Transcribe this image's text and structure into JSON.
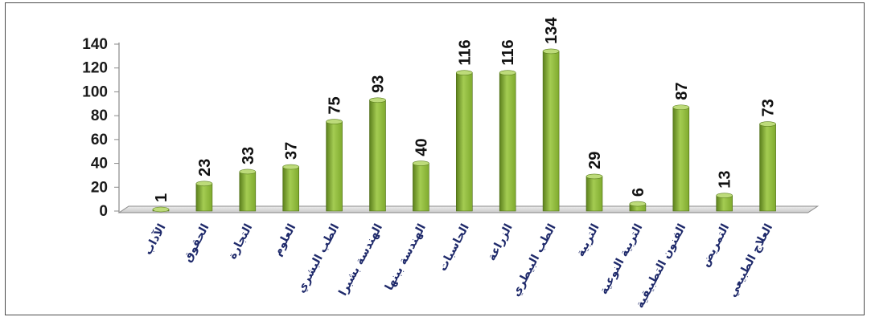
{
  "chart_data": {
    "type": "bar",
    "categories": [
      "الآداب",
      "الحقوق",
      "التجارة",
      "العلوم",
      "الطب البشري",
      "الهندسة بشبرا",
      "الهندسة ببنها",
      "الحاسبات",
      "الزراعة",
      "الطب البيطري",
      "التربية",
      "التربية النوعية",
      "الفنون التطبيقية",
      "التمريض",
      "العلاج الطبيعي"
    ],
    "values": [
      1,
      23,
      33,
      37,
      75,
      93,
      40,
      116,
      116,
      134,
      29,
      6,
      87,
      13,
      73
    ],
    "data_labels": [
      "1",
      "23",
      "33",
      "37",
      "75",
      "93",
      "40",
      "116",
      "116",
      "134",
      "29",
      "6",
      "87",
      "13",
      "73"
    ],
    "yticks": [
      "0",
      "20",
      "40",
      "60",
      "80",
      "100",
      "120",
      "140"
    ],
    "ylim": [
      0,
      140
    ],
    "grid": false,
    "legend": "none",
    "colors": {
      "bar_light": "#a4cc52",
      "bar_mid": "#7faa2e",
      "bar_dark": "#5b7f1c",
      "axis": "#8a8a8a",
      "floor": "#d9d9d9",
      "xlabel_text": "#1f2a6b"
    }
  }
}
